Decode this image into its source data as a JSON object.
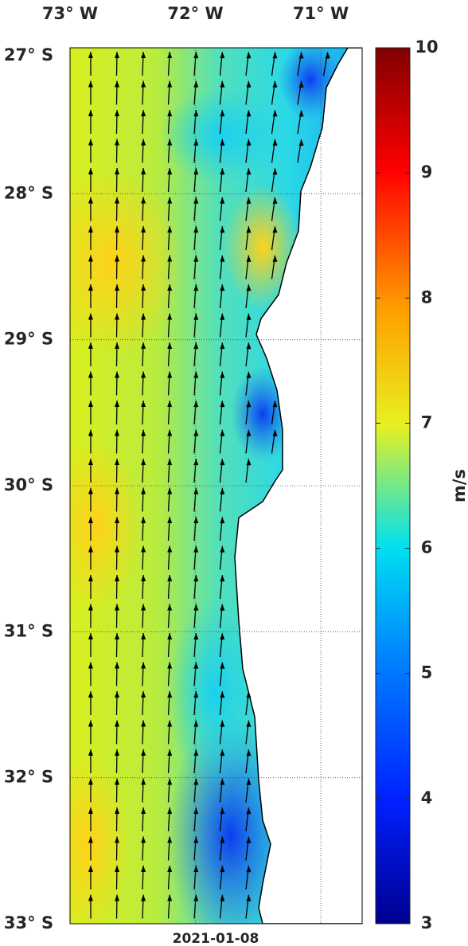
{
  "map": {
    "xlim": [
      -73,
      -70.67
    ],
    "ylim": [
      -33,
      -27
    ],
    "lon_ticks": [
      {
        "value": -73,
        "label": "73° W"
      },
      {
        "value": -72,
        "label": "72° W"
      },
      {
        "value": -71,
        "label": "71° W"
      }
    ],
    "lat_ticks": [
      {
        "value": -27,
        "label": "27° S"
      },
      {
        "value": -28,
        "label": "28° S"
      },
      {
        "value": -29,
        "label": "29° S"
      },
      {
        "value": -30,
        "label": "30° S"
      },
      {
        "value": -31,
        "label": "31° S"
      },
      {
        "value": -32,
        "label": "32° S"
      },
      {
        "value": -33,
        "label": "33° S"
      }
    ],
    "colorbar": {
      "clim": [
        3,
        10
      ],
      "ticks": [
        3,
        4,
        5,
        6,
        7,
        8,
        9,
        10
      ],
      "label": "m/s"
    },
    "date": "2021-01-08"
  }
}
